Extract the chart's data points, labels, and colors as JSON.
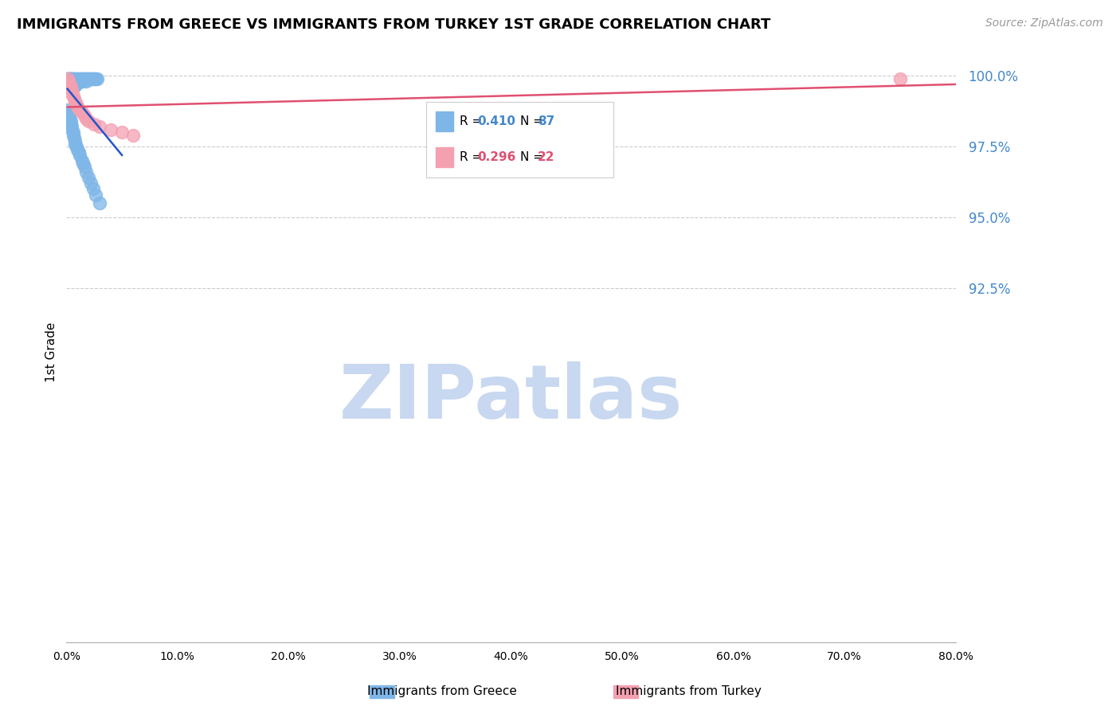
{
  "title": "IMMIGRANTS FROM GREECE VS IMMIGRANTS FROM TURKEY 1ST GRADE CORRELATION CHART",
  "source": "Source: ZipAtlas.com",
  "ylabel": "1st Grade",
  "ytick_labels": [
    "100.0%",
    "97.5%",
    "95.0%",
    "92.5%"
  ],
  "ytick_values": [
    1.0,
    0.975,
    0.95,
    0.925
  ],
  "xlim": [
    0.0,
    0.8
  ],
  "ylim": [
    0.8,
    1.005
  ],
  "greece_R": 0.41,
  "greece_N": 87,
  "turkey_R": 0.296,
  "turkey_N": 22,
  "greece_color": "#7EB6E8",
  "turkey_color": "#F4A0B0",
  "trend_greece_color": "#2255CC",
  "trend_turkey_color": "#E05070",
  "watermark": "ZIPatlas",
  "watermark_color": "#C8D8F0",
  "legend_label_greece": "Immigrants from Greece",
  "legend_label_turkey": "Immigrants from Turkey",
  "greece_x": [
    0.001,
    0.001,
    0.002,
    0.002,
    0.002,
    0.002,
    0.003,
    0.003,
    0.003,
    0.003,
    0.003,
    0.003,
    0.004,
    0.004,
    0.004,
    0.004,
    0.005,
    0.005,
    0.005,
    0.005,
    0.005,
    0.006,
    0.006,
    0.006,
    0.006,
    0.006,
    0.007,
    0.007,
    0.007,
    0.007,
    0.008,
    0.008,
    0.008,
    0.009,
    0.009,
    0.009,
    0.01,
    0.01,
    0.011,
    0.011,
    0.012,
    0.012,
    0.013,
    0.013,
    0.014,
    0.015,
    0.015,
    0.016,
    0.017,
    0.018,
    0.018,
    0.019,
    0.02,
    0.021,
    0.022,
    0.023,
    0.024,
    0.025,
    0.026,
    0.028,
    0.001,
    0.002,
    0.002,
    0.003,
    0.003,
    0.004,
    0.004,
    0.005,
    0.005,
    0.006,
    0.006,
    0.007,
    0.008,
    0.008,
    0.009,
    0.01,
    0.011,
    0.012,
    0.014,
    0.015,
    0.016,
    0.018,
    0.02,
    0.022,
    0.024,
    0.026,
    0.03
  ],
  "greece_y": [
    0.999,
    0.999,
    0.999,
    0.999,
    0.998,
    0.998,
    0.999,
    0.999,
    0.999,
    0.998,
    0.998,
    0.997,
    0.999,
    0.999,
    0.998,
    0.997,
    0.999,
    0.999,
    0.998,
    0.997,
    0.996,
    0.999,
    0.999,
    0.998,
    0.997,
    0.996,
    0.999,
    0.998,
    0.997,
    0.996,
    0.999,
    0.998,
    0.997,
    0.999,
    0.998,
    0.997,
    0.999,
    0.998,
    0.999,
    0.998,
    0.999,
    0.998,
    0.999,
    0.998,
    0.999,
    0.999,
    0.998,
    0.999,
    0.999,
    0.999,
    0.998,
    0.999,
    0.999,
    0.999,
    0.999,
    0.999,
    0.999,
    0.999,
    0.999,
    0.999,
    0.988,
    0.987,
    0.986,
    0.986,
    0.985,
    0.984,
    0.983,
    0.982,
    0.981,
    0.98,
    0.979,
    0.978,
    0.977,
    0.976,
    0.975,
    0.974,
    0.973,
    0.972,
    0.97,
    0.969,
    0.968,
    0.966,
    0.964,
    0.962,
    0.96,
    0.958,
    0.955
  ],
  "turkey_x": [
    0.001,
    0.002,
    0.003,
    0.004,
    0.004,
    0.005,
    0.006,
    0.007,
    0.008,
    0.009,
    0.01,
    0.012,
    0.014,
    0.016,
    0.018,
    0.02,
    0.025,
    0.03,
    0.04,
    0.05,
    0.06,
    0.75
  ],
  "turkey_y": [
    0.999,
    0.998,
    0.997,
    0.996,
    0.994,
    0.995,
    0.993,
    0.992,
    0.991,
    0.99,
    0.989,
    0.988,
    0.987,
    0.986,
    0.985,
    0.984,
    0.983,
    0.982,
    0.981,
    0.98,
    0.979,
    0.999
  ]
}
